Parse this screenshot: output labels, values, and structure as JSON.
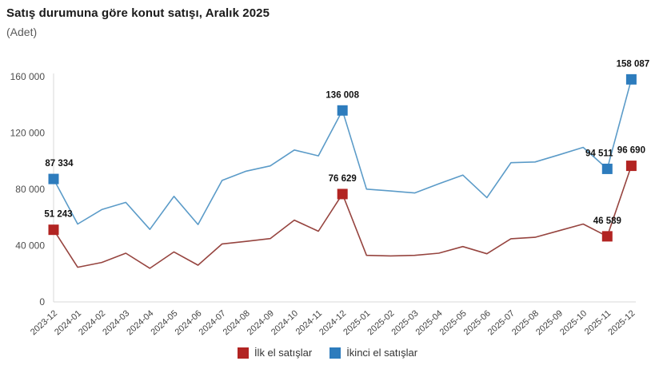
{
  "header": {
    "title": "Satış durumuna göre konut satışı, Aralık 2025",
    "subtitle": "(Adet)"
  },
  "legend": {
    "items": [
      {
        "label": "İlk el satışlar",
        "color": "#b22422"
      },
      {
        "label": "İkinci el satışlar",
        "color": "#2d7cbd"
      }
    ]
  },
  "chart_data": {
    "type": "line",
    "title": "Satış durumuna göre konut satışı, Aralık 2025",
    "ylabel": "(Adet)",
    "ylim": [
      0,
      160000
    ],
    "yticks": [
      0,
      40000,
      80000,
      120000,
      160000
    ],
    "grid": false,
    "legend_position": "bottom",
    "marker": "square (only on labeled points)",
    "x": [
      "2023-12",
      "2024-01",
      "2024-02",
      "2024-03",
      "2024-04",
      "2024-05",
      "2024-06",
      "2024-07",
      "2024-08",
      "2024-09",
      "2024-10",
      "2024-11",
      "2024-12",
      "2025-01",
      "2025-02",
      "2025-03",
      "2025-04",
      "2025-05",
      "2025-06",
      "2025-07",
      "2025-08",
      "2025-09",
      "2025-10",
      "2025-11",
      "2025-12"
    ],
    "series": [
      {
        "name": "İlk el satışlar",
        "line_color": "#96443f",
        "marker_color": "#b22422",
        "values": [
          51243,
          24600,
          28000,
          34600,
          23900,
          35500,
          26100,
          41200,
          43000,
          45000,
          58100,
          50200,
          76629,
          33100,
          32700,
          33100,
          34600,
          39300,
          34200,
          44900,
          45900,
          50600,
          55300,
          46589,
          96690
        ],
        "labeled_points": [
          {
            "i": 0,
            "text": "51 243",
            "dx": 6
          },
          {
            "i": 12,
            "text": "76 629",
            "dx": 0
          },
          {
            "i": 23,
            "text": "46 589",
            "dx": 0
          },
          {
            "i": 24,
            "text": "96 690",
            "dx": 0
          }
        ]
      },
      {
        "name": "İkinci el satışlar",
        "line_color": "#5b9bc8",
        "marker_color": "#2d7cbd",
        "values": [
          87334,
          55300,
          65600,
          70700,
          51500,
          75000,
          55000,
          86300,
          92900,
          96600,
          107900,
          103800,
          136008,
          80100,
          78800,
          77400,
          83900,
          90100,
          74100,
          98900,
          99400,
          104500,
          109800,
          94511,
          158087
        ],
        "labeled_points": [
          {
            "i": 0,
            "text": "87 334",
            "dx": 7
          },
          {
            "i": 12,
            "text": "136 008",
            "dx": 0
          },
          {
            "i": 23,
            "text": "94 511",
            "dx": -10
          },
          {
            "i": 24,
            "text": "158 087",
            "dx": 2
          }
        ]
      }
    ]
  }
}
